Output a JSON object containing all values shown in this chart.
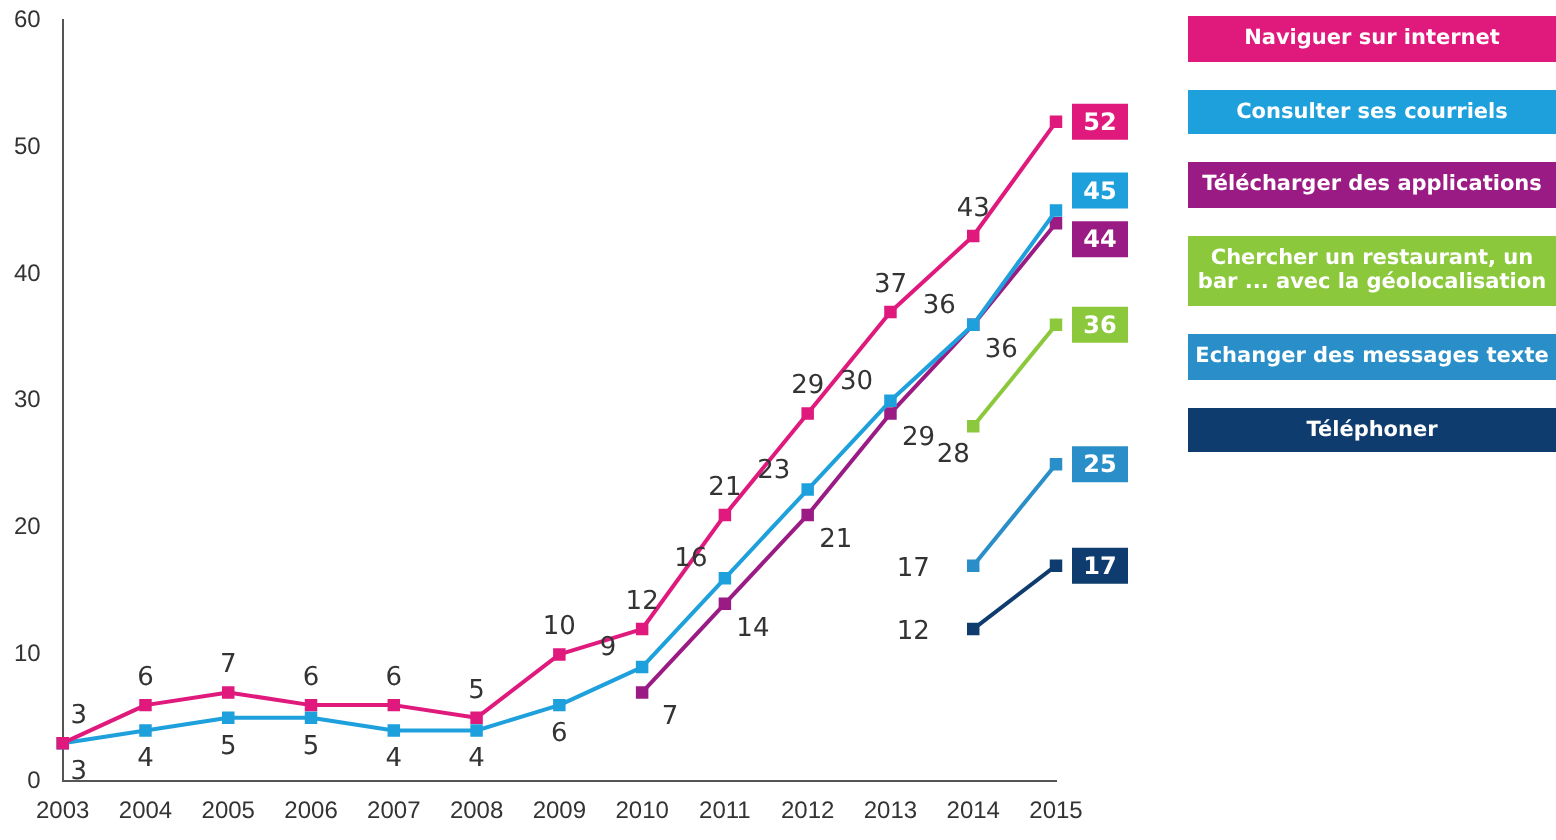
{
  "chart_data": {
    "type": "line",
    "categories": [
      "2003",
      "2004",
      "2005",
      "2006",
      "2007",
      "2008",
      "2009",
      "2010",
      "2011",
      "2012",
      "2013",
      "2014",
      "2015"
    ],
    "series": [
      {
        "name": "Naviguer sur internet",
        "color": "#e0197d",
        "values": [
          3,
          6,
          7,
          6,
          6,
          5,
          10,
          12,
          21,
          29,
          37,
          43,
          52
        ]
      },
      {
        "name": "Consulter ses courriels",
        "color": "#1ea0dc",
        "values": [
          3,
          4,
          5,
          5,
          4,
          4,
          6,
          9,
          16,
          23,
          30,
          36,
          45
        ]
      },
      {
        "name": "Télécharger des applications",
        "color": "#9b1b84",
        "values": [
          null,
          null,
          null,
          null,
          null,
          null,
          null,
          7,
          14,
          21,
          29,
          36,
          44
        ]
      },
      {
        "name": "Chercher un restaurant, un bar ... avec la géolocalisation",
        "color": "#8cc83c",
        "values": [
          null,
          null,
          null,
          null,
          null,
          null,
          null,
          null,
          null,
          null,
          null,
          28,
          36
        ]
      },
      {
        "name": "Echanger des messages texte",
        "color": "#2a8fc8",
        "values": [
          null,
          null,
          null,
          null,
          null,
          null,
          null,
          null,
          null,
          null,
          null,
          17,
          25
        ]
      },
      {
        "name": "Téléphoner",
        "color": "#0f3c6e",
        "values": [
          null,
          null,
          null,
          null,
          null,
          null,
          null,
          null,
          null,
          null,
          null,
          12,
          17
        ]
      }
    ],
    "ylim": [
      0,
      60
    ],
    "yticks": [
      0,
      10,
      20,
      30,
      40,
      50,
      60
    ],
    "grid": false,
    "legend": "right",
    "marker": "square",
    "line_style": "solid",
    "data_labels": true
  }
}
